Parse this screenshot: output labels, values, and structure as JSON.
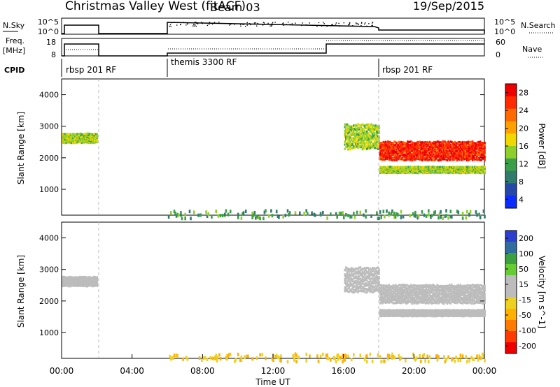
{
  "header": {
    "title": "Christmas Valley West (fitACF)",
    "beam": "Beam 03",
    "date": "19/Sep/2015"
  },
  "noise_panel": {
    "left_label": "N.Sky",
    "right_label": "N.Search",
    "left_ticks": [
      "10^5",
      "10^0"
    ],
    "right_ticks": [
      "10^5",
      "10^0"
    ]
  },
  "freq_panel": {
    "left_label_1": "Freq.",
    "left_label_2": "[MHz]",
    "right_label": "Nave",
    "left_ticks": [
      "18",
      "8"
    ],
    "right_ticks": [
      "60",
      "0"
    ]
  },
  "cpid": {
    "label": "CPID",
    "segments": [
      "rbsp 201 RF",
      "themis 3300 RF",
      "rbsp 201 RF"
    ]
  },
  "colors": {
    "power_scale": [
      "#0a2cff",
      "#2447a8",
      "#2f7c6c",
      "#3a9e4a",
      "#8fcf2a",
      "#f2d600",
      "#ffa000",
      "#ff6a00",
      "#ff2a00",
      "#ee0000"
    ],
    "velocity_scale": [
      "#ee0000",
      "#ff3a00",
      "#ff7a00",
      "#ffb000",
      "#eed020",
      "#bcbcbc",
      "#bcbcbc",
      "#66cc33",
      "#3aa040",
      "#2e6d9e",
      "#2d3fd0"
    ]
  },
  "chart_data": [
    {
      "type": "heatmap",
      "title": "Power",
      "ylabel": "Slant Range [km]",
      "xlabel": "",
      "xlim": [
        0,
        24
      ],
      "ylim": [
        180,
        4500
      ],
      "yticks": [
        "1000",
        "2000",
        "3000",
        "4000"
      ],
      "colorbar": {
        "label": "Power [dB]",
        "ticks": [
          "4",
          "8",
          "12",
          "16",
          "20",
          "24",
          "28"
        ],
        "range": [
          0,
          30
        ]
      },
      "features": [
        {
          "t_start": 0.0,
          "t_end": 2.0,
          "range_center": 2650,
          "range_width": 300,
          "value": 14
        },
        {
          "t_start": 16.0,
          "t_end": 18.0,
          "range_center": 2700,
          "range_width": 800,
          "value": 14
        },
        {
          "t_start": 18.0,
          "t_end": 24.0,
          "range_center": 2250,
          "range_width": 600,
          "value": 26
        },
        {
          "t_start": 18.0,
          "t_end": 24.0,
          "range_center": 1650,
          "range_width": 200,
          "value": 14
        },
        {
          "t_start": 6.0,
          "t_end": 24.0,
          "range_center": 250,
          "range_width": 250,
          "value": 10
        }
      ]
    },
    {
      "type": "heatmap",
      "title": "Velocity",
      "ylabel": "Slant Range [km]",
      "xlabel": "Time UT",
      "xlim": [
        0,
        24
      ],
      "ylim": [
        180,
        4500
      ],
      "yticks": [
        "1000",
        "2000",
        "3000",
        "4000"
      ],
      "xticks": [
        "00:00",
        "04:00",
        "08:00",
        "12:00",
        "16:00",
        "20:00",
        "00:00"
      ],
      "colorbar": {
        "label": "Velocity [m s^-1]",
        "ticks": [
          "200",
          "100",
          "50",
          "15",
          "-15",
          "-50",
          "-100",
          "-200"
        ],
        "range": [
          -250,
          250
        ]
      },
      "features": [
        {
          "t_start": 0.0,
          "t_end": 2.0,
          "range_center": 2650,
          "range_width": 300,
          "value": 0
        },
        {
          "t_start": 16.0,
          "t_end": 18.0,
          "range_center": 2700,
          "range_width": 800,
          "value": 0
        },
        {
          "t_start": 18.0,
          "t_end": 24.0,
          "range_center": 2250,
          "range_width": 600,
          "value": 0
        },
        {
          "t_start": 18.0,
          "t_end": 24.0,
          "range_center": 1650,
          "range_width": 200,
          "value": 0
        },
        {
          "t_start": 6.0,
          "t_end": 24.0,
          "range_center": 250,
          "range_width": 250,
          "value": -60
        }
      ]
    }
  ]
}
